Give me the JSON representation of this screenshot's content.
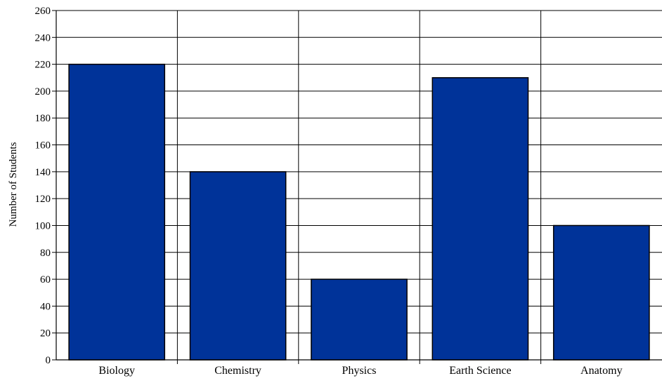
{
  "chart_data": {
    "type": "bar",
    "title": "",
    "xlabel": "",
    "ylabel": "Number of Students",
    "categories": [
      "Biology",
      "Chemistry",
      "Physics",
      "Earth Science",
      "Anatomy"
    ],
    "series": [
      {
        "values": [
          220,
          140,
          60,
          210,
          100
        ]
      }
    ],
    "ylim": [
      0,
      260
    ],
    "yticks": [
      0,
      20,
      40,
      60,
      80,
      100,
      120,
      140,
      160,
      180,
      200,
      220,
      240,
      260
    ],
    "bar_color": "#003399",
    "grid": true,
    "legend": "none"
  }
}
